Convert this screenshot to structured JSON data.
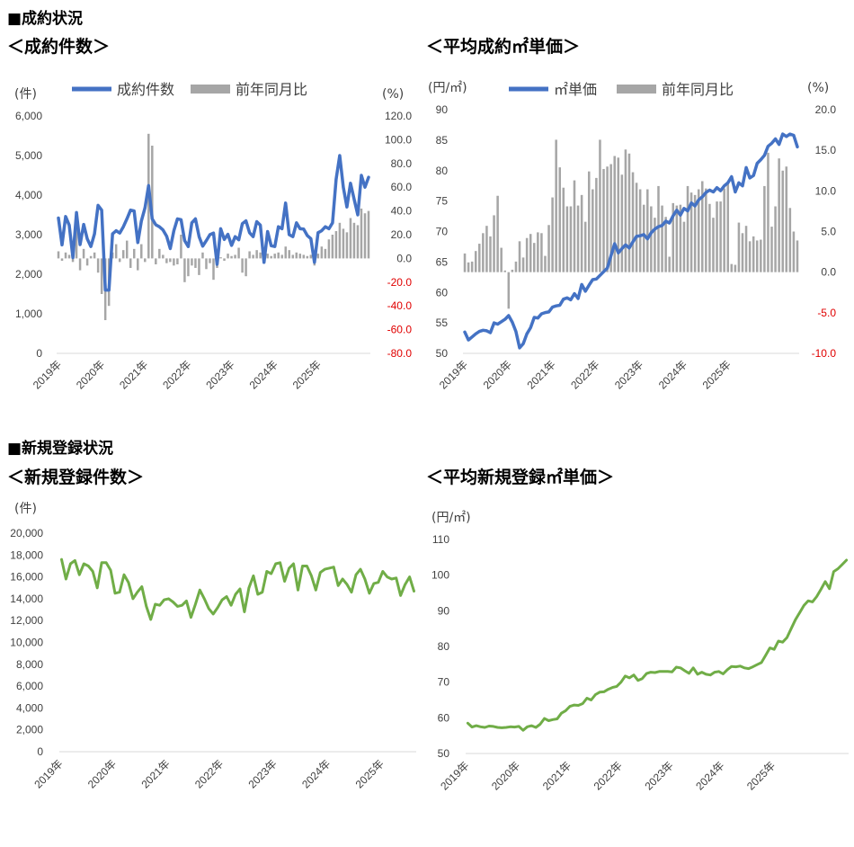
{
  "section1_title": "■成約状況",
  "section2_title": "■新規登録状況",
  "chart1_title": "＜成約件数＞",
  "chart2_title": "＜平均成約㎡単価＞",
  "chart3_title": "＜新規登録件数＞",
  "chart4_title": "＜平均新規登録㎡単価＞",
  "colors": {
    "blue": "#4472c4",
    "gray": "#a6a6a6",
    "green": "#70ad47",
    "red": "#e00000"
  },
  "chart_data": [
    {
      "type": "bar+line",
      "title": "＜成約件数＞",
      "left_unit": "(件)",
      "right_unit": "(%)",
      "legend": [
        "成約件数",
        "前年同月比"
      ],
      "left_ticks": [
        "6,000",
        "5,000",
        "4,000",
        "3,000",
        "2,000",
        "1,000",
        "0"
      ],
      "right_ticks": [
        "120.0",
        "100.0",
        "80.0",
        "60.0",
        "40.0",
        "20.0",
        "0.0",
        "-20.0",
        "-40.0",
        "-60.0",
        "-80.0"
      ],
      "ylim_left": [
        0,
        6000
      ],
      "ylim_right": [
        -80,
        120
      ],
      "x_labels": [
        "2019年",
        "2020年",
        "2021年",
        "2022年",
        "2023年",
        "2024年",
        "2025年"
      ],
      "series": [
        {
          "name": "成約件数",
          "type": "line",
          "values": [
            3420,
            2740,
            3460,
            3240,
            2420,
            3560,
            2750,
            3260,
            2890,
            2700,
            3020,
            3740,
            3620,
            1600,
            1600,
            3020,
            3100,
            3040,
            3200,
            3400,
            3620,
            3600,
            2800,
            3350,
            3680,
            4240,
            3400,
            3250,
            3200,
            3120,
            2960,
            2650,
            3100,
            3400,
            3380,
            2850,
            2700,
            3300,
            3400,
            2950,
            2710,
            2850,
            3000,
            3040,
            2250,
            3150,
            2880,
            3010,
            2730,
            2950,
            2870,
            3280,
            3350,
            3050,
            2950,
            3330,
            3240,
            2300,
            3080,
            2720,
            2700,
            3200,
            3150,
            3800,
            3000,
            2950,
            3300,
            3150,
            3140,
            2980,
            2900,
            2300,
            3050,
            3100,
            3200,
            3150,
            3300,
            4400,
            5000,
            4200,
            3700,
            4300,
            3900,
            3500,
            4500,
            4200,
            4450
          ]
        },
        {
          "name": "前年同月比",
          "type": "bar",
          "values": [
            6,
            -2,
            5,
            3,
            -3,
            25,
            -10,
            8,
            -6,
            2,
            5,
            -12,
            -30,
            -52,
            -40,
            5,
            12,
            -3,
            7,
            15,
            -8,
            8,
            -10,
            12,
            -3,
            105,
            95,
            -5,
            8,
            3,
            -4,
            -3,
            -6,
            -5,
            20,
            -20,
            -15,
            -6,
            -8,
            -14,
            5,
            -9,
            -4,
            -18,
            -8,
            1,
            -2,
            4,
            2,
            3,
            9,
            -12,
            -15,
            6,
            3,
            7,
            5,
            -4,
            4,
            2,
            4,
            5,
            3,
            10,
            7,
            3,
            5,
            4,
            3,
            2,
            3,
            -6,
            4,
            10,
            8,
            16,
            20,
            23,
            30,
            25,
            22,
            34,
            30,
            28,
            42,
            38,
            40
          ]
        }
      ]
    },
    {
      "type": "bar+line",
      "title": "＜平均成約㎡単価＞",
      "left_unit": "(円/㎡)",
      "right_unit": "(%)",
      "legend": [
        "㎡単価",
        "前年同月比"
      ],
      "left_ticks": [
        "90",
        "85",
        "80",
        "75",
        "70",
        "65",
        "60",
        "55",
        "50"
      ],
      "right_ticks": [
        "20.0",
        "15.0",
        "10.0",
        "5.0",
        "0.0",
        "-5.0",
        "-10.0"
      ],
      "ylim_left": [
        50,
        90
      ],
      "ylim_right": [
        -10,
        20
      ],
      "x_labels": [
        "2019年",
        "2020年",
        "2021年",
        "2022年",
        "2023年",
        "2024年",
        "2025年"
      ],
      "series": [
        {
          "name": "㎡単価",
          "type": "line",
          "values": [
            53.5,
            52.2,
            52.7,
            53.2,
            53.6,
            53.8,
            53.7,
            53.4,
            55.0,
            54.8,
            55.2,
            55.6,
            56.2,
            55.1,
            53.6,
            50.9,
            51.6,
            53.2,
            54.2,
            55.9,
            55.8,
            56.5,
            56.7,
            56.8,
            57.6,
            57.8,
            57.9,
            58.9,
            59.1,
            58.8,
            59.8,
            59.0,
            61.3,
            60.2,
            61.2,
            62.1,
            62.2,
            62.8,
            63.4,
            64.0,
            66.0,
            68.0,
            66.5,
            67.2,
            67.8,
            67.3,
            68.3,
            69.2,
            69.3,
            69.5,
            68.8,
            69.8,
            70.4,
            70.8,
            71.0,
            71.7,
            71.4,
            72.6,
            73.5,
            72.7,
            73.8,
            73.4,
            74.7,
            74.2,
            75.2,
            75.7,
            76.4,
            76.8,
            76.5,
            77.2,
            76.7,
            77.5,
            78.0,
            79.0,
            76.5,
            78.0,
            77.5,
            80.5,
            78.8,
            79.2,
            81.2,
            81.8,
            82.5,
            84.0,
            84.5,
            85.2,
            84.3,
            86.0,
            85.6,
            86.0,
            85.8,
            83.9
          ]
        },
        {
          "name": "前年同月比",
          "type": "bar",
          "values": [
            2.3,
            1.2,
            1.3,
            2.6,
            3.5,
            4.8,
            5.7,
            4.4,
            7.0,
            9.4,
            3.0,
            0.2,
            -4.5,
            0.3,
            1.3,
            3.8,
            1.8,
            4.2,
            4.7,
            3.6,
            4.9,
            4.8,
            2.0,
            5.8,
            9.2,
            16.3,
            12.9,
            10.4,
            8.1,
            8.1,
            11.3,
            8.2,
            9.5,
            6.2,
            12.4,
            10.2,
            11.6,
            16.3,
            12.7,
            13.0,
            13.3,
            14.3,
            14.1,
            12.0,
            15.1,
            14.6,
            12.3,
            11.0,
            10.2,
            8.3,
            10.2,
            8.1,
            6.7,
            10.6,
            8.2,
            6.8,
            1.9,
            8.5,
            8.2,
            8.3,
            6.2,
            10.6,
            9.8,
            9.5,
            10.2,
            11.2,
            10.3,
            8.4,
            6.7,
            8.7,
            8.7,
            10.3,
            11.0,
            1.0,
            0.9,
            6.1,
            4.8,
            5.7,
            3.8,
            4.4,
            3.9,
            4.0,
            10.6,
            14.7,
            5.6,
            8.1,
            14.0,
            12.5,
            13.0,
            7.9,
            5.0,
            3.9
          ]
        }
      ]
    },
    {
      "type": "line",
      "title": "＜新規登録件数＞",
      "left_unit": "(件)",
      "left_ticks": [
        "20,000",
        "18,000",
        "16,000",
        "14,000",
        "12,000",
        "10,000",
        "8,000",
        "6,000",
        "4,000",
        "2,000",
        "0"
      ],
      "ylim": [
        0,
        20000
      ],
      "x_labels": [
        "2019年",
        "2020年",
        "2021年",
        "2022年",
        "2023年",
        "2024年",
        "2025年"
      ],
      "series": [
        {
          "name": "新規登録件数",
          "values": [
            17600,
            15800,
            17200,
            17500,
            16200,
            17200,
            17000,
            16500,
            15000,
            17300,
            17300,
            16600,
            14500,
            14600,
            16200,
            15500,
            14000,
            14600,
            15100,
            13300,
            12100,
            13500,
            13400,
            13900,
            14000,
            13700,
            13300,
            13400,
            13800,
            12300,
            13500,
            14800,
            14000,
            13100,
            12600,
            13200,
            13900,
            14200,
            13400,
            14400,
            14900,
            12800,
            15000,
            16100,
            14400,
            14600,
            16500,
            16300,
            17200,
            17300,
            15600,
            16800,
            17200,
            14800,
            17000,
            17000,
            16100,
            14800,
            16400,
            16700,
            16800,
            16900,
            15200,
            15800,
            15300,
            14600,
            16200,
            16700,
            15800,
            14500,
            15400,
            15500,
            16500,
            16000,
            15800,
            15900,
            14300,
            15300,
            16000,
            14700
          ]
        }
      ]
    },
    {
      "type": "line",
      "title": "＜平均新規登録㎡単価＞",
      "left_unit": "(円/㎡)",
      "left_ticks": [
        "110",
        "100",
        "90",
        "80",
        "70",
        "60",
        "50"
      ],
      "ylim": [
        50,
        110
      ],
      "x_labels": [
        "2019年",
        "2020年",
        "2021年",
        "2022年",
        "2023年",
        "2024年",
        "2025年"
      ],
      "series": [
        {
          "name": "平均新規登録㎡単価",
          "values": [
            58.5,
            57.4,
            57.8,
            57.5,
            57.3,
            57.7,
            57.6,
            57.3,
            57.2,
            57.3,
            57.5,
            57.4,
            57.6,
            56.5,
            57.5,
            57.8,
            57.3,
            58.2,
            59.8,
            59.2,
            59.5,
            59.7,
            61.3,
            62.0,
            63.2,
            63.6,
            63.5,
            64.0,
            65.5,
            65.0,
            66.5,
            67.2,
            67.3,
            68.0,
            68.5,
            68.8,
            70.0,
            71.7,
            71.2,
            72.0,
            70.5,
            71.0,
            72.4,
            72.8,
            72.7,
            73.0,
            73.0,
            73.0,
            72.9,
            74.2,
            74.0,
            73.2,
            72.5,
            74.0,
            72.2,
            72.8,
            72.2,
            72.0,
            72.8,
            73.0,
            72.3,
            73.5,
            74.4,
            74.3,
            74.5,
            74.0,
            73.8,
            74.3,
            74.9,
            75.5,
            77.5,
            79.6,
            79.2,
            81.5,
            81.2,
            82.5,
            85.0,
            87.5,
            89.5,
            91.5,
            92.8,
            92.5,
            94.0,
            96.0,
            98.2,
            96.2,
            101.0,
            101.8,
            103.0,
            104.2
          ]
        }
      ]
    }
  ]
}
